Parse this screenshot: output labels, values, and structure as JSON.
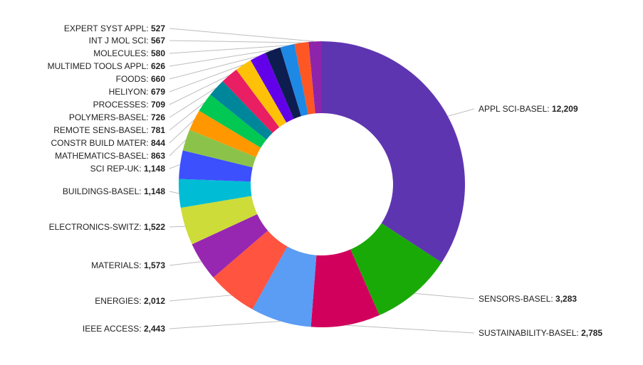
{
  "chart_data": {
    "type": "pie",
    "variant": "donut",
    "title": "",
    "legend": "none",
    "slices": [
      {
        "label": "APPL SCI-BASEL",
        "value": 12209,
        "display": "12,209",
        "color": "#5e35b1"
      },
      {
        "label": "SENSORS-BASEL",
        "value": 3283,
        "display": "3,283",
        "color": "#1aaa08"
      },
      {
        "label": "SUSTAINABILITY-BASEL",
        "value": 2785,
        "display": "2,785",
        "color": "#d1005c"
      },
      {
        "label": "IEEE ACCESS",
        "value": 2443,
        "display": "2,443",
        "color": "#5b9cf4"
      },
      {
        "label": "ENERGIES",
        "value": 2012,
        "display": "2,012",
        "color": "#ff5440"
      },
      {
        "label": "MATERIALS",
        "value": 1573,
        "display": "1,573",
        "color": "#9727b0"
      },
      {
        "label": "ELECTRONICS-SWITZ",
        "value": 1522,
        "display": "1,522",
        "color": "#cddc39"
      },
      {
        "label": "BUILDINGS-BASEL",
        "value": 1148,
        "display": "1,148",
        "color": "#00bcd4"
      },
      {
        "label": "SCI REP-UK",
        "value": 1148,
        "display": "1,148",
        "color": "#3d50fe"
      },
      {
        "label": "MATHEMATICS-BASEL",
        "value": 863,
        "display": "863",
        "color": "#8bc34a"
      },
      {
        "label": "CONSTR BUILD MATER",
        "value": 844,
        "display": "844",
        "color": "#ff9800"
      },
      {
        "label": "REMOTE SENS-BASEL",
        "value": 781,
        "display": "781",
        "color": "#00c852"
      },
      {
        "label": "POLYMERS-BASEL",
        "value": 726,
        "display": "726",
        "color": "#00869a"
      },
      {
        "label": "PROCESSES",
        "value": 709,
        "display": "709",
        "color": "#e91e63"
      },
      {
        "label": "HELIYON",
        "value": 679,
        "display": "679",
        "color": "#ffc107"
      },
      {
        "label": "FOODS",
        "value": 660,
        "display": "660",
        "color": "#6300ea"
      },
      {
        "label": "MULTIMED TOOLS APPL",
        "value": 626,
        "display": "626",
        "color": "#0d1d4f"
      },
      {
        "label": "MOLECULES",
        "value": 580,
        "display": "580",
        "color": "#1e88e5"
      },
      {
        "label": "INT J MOL SCI",
        "value": 567,
        "display": "567",
        "color": "#ff5723"
      },
      {
        "label": "EXPERT SYST APPL",
        "value": 527,
        "display": "527",
        "color": "#8e24aa"
      }
    ]
  }
}
